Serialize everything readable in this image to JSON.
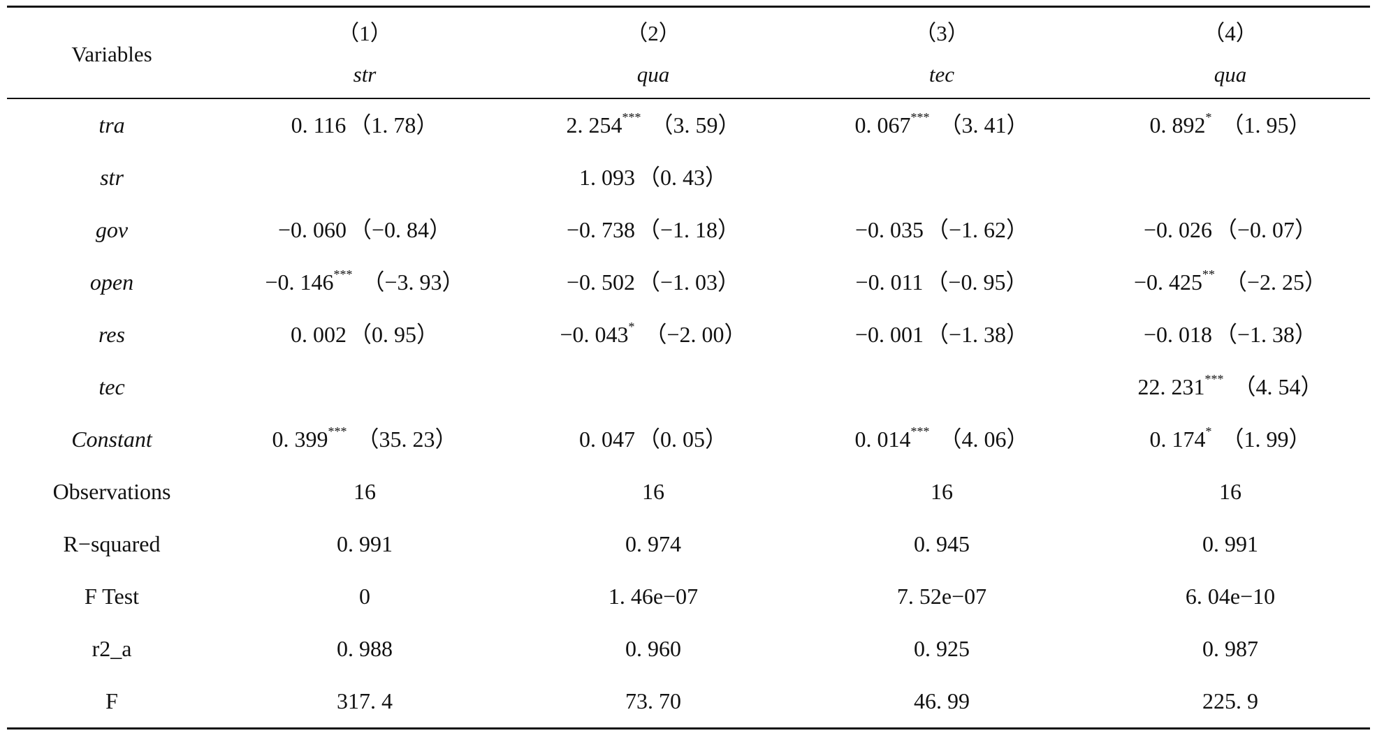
{
  "header": {
    "variables_label": "Variables",
    "columns": [
      {
        "number": "（1）",
        "dependent": "str"
      },
      {
        "number": "（2）",
        "dependent": "qua"
      },
      {
        "number": "（3）",
        "dependent": "tec"
      },
      {
        "number": "（4）",
        "dependent": "qua"
      }
    ]
  },
  "rows": [
    {
      "name": "tra",
      "italic": true,
      "cells": [
        {
          "coef": "0. 116",
          "stars": "",
          "t": "（1. 78）"
        },
        {
          "coef": "2. 254",
          "stars": "***",
          "t": "（3. 59）"
        },
        {
          "coef": "0. 067",
          "stars": "***",
          "t": "（3. 41）"
        },
        {
          "coef": "0. 892",
          "stars": "*",
          "t": "（1. 95）"
        }
      ]
    },
    {
      "name": "str",
      "italic": true,
      "cells": [
        {
          "coef": "",
          "stars": "",
          "t": ""
        },
        {
          "coef": "1. 093",
          "stars": "",
          "t": "（0. 43）"
        },
        {
          "coef": "",
          "stars": "",
          "t": ""
        },
        {
          "coef": "",
          "stars": "",
          "t": ""
        }
      ]
    },
    {
      "name": "gov",
      "italic": true,
      "cells": [
        {
          "coef": "−0. 060",
          "stars": "",
          "t": "（−0. 84）"
        },
        {
          "coef": "−0. 738",
          "stars": "",
          "t": "（−1. 18）"
        },
        {
          "coef": "−0. 035",
          "stars": "",
          "t": "（−1. 62）"
        },
        {
          "coef": "−0. 026",
          "stars": "",
          "t": "（−0. 07）"
        }
      ]
    },
    {
      "name": "open",
      "italic": true,
      "cells": [
        {
          "coef": "−0. 146",
          "stars": "***",
          "t": "（−3. 93）"
        },
        {
          "coef": "−0. 502",
          "stars": "",
          "t": "（−1. 03）"
        },
        {
          "coef": "−0. 011",
          "stars": "",
          "t": "（−0. 95）"
        },
        {
          "coef": "−0. 425",
          "stars": "**",
          "t": "（−2. 25）"
        }
      ]
    },
    {
      "name": "res",
      "italic": true,
      "cells": [
        {
          "coef": "0. 002",
          "stars": "",
          "t": "（0. 95）"
        },
        {
          "coef": "−0. 043",
          "stars": "*",
          "t": "（−2. 00）"
        },
        {
          "coef": "−0. 001",
          "stars": "",
          "t": "（−1. 38）"
        },
        {
          "coef": "−0. 018",
          "stars": "",
          "t": "（−1. 38）"
        }
      ]
    },
    {
      "name": "tec",
      "italic": true,
      "cells": [
        {
          "coef": "",
          "stars": "",
          "t": ""
        },
        {
          "coef": "",
          "stars": "",
          "t": ""
        },
        {
          "coef": "",
          "stars": "",
          "t": ""
        },
        {
          "coef": "22. 231",
          "stars": "***",
          "t": "（4. 54）"
        }
      ]
    },
    {
      "name": "Constant",
      "italic": true,
      "cells": [
        {
          "coef": "0. 399",
          "stars": "***",
          "t": "（35. 23）"
        },
        {
          "coef": "0. 047",
          "stars": "",
          "t": "（0. 05）"
        },
        {
          "coef": "0. 014",
          "stars": "***",
          "t": "（4. 06）"
        },
        {
          "coef": "0. 174",
          "stars": "*",
          "t": "（1. 99）"
        }
      ]
    },
    {
      "name": "Observations",
      "italic": false,
      "cells": [
        {
          "coef": "16",
          "stars": "",
          "t": ""
        },
        {
          "coef": "16",
          "stars": "",
          "t": ""
        },
        {
          "coef": "16",
          "stars": "",
          "t": ""
        },
        {
          "coef": "16",
          "stars": "",
          "t": ""
        }
      ]
    },
    {
      "name": "R−squared",
      "italic": false,
      "cells": [
        {
          "coef": "0. 991",
          "stars": "",
          "t": ""
        },
        {
          "coef": "0. 974",
          "stars": "",
          "t": ""
        },
        {
          "coef": "0. 945",
          "stars": "",
          "t": ""
        },
        {
          "coef": "0. 991",
          "stars": "",
          "t": ""
        }
      ]
    },
    {
      "name": "F Test",
      "italic": false,
      "cells": [
        {
          "coef": "0",
          "stars": "",
          "t": ""
        },
        {
          "coef": "1. 46e−07",
          "stars": "",
          "t": ""
        },
        {
          "coef": "7. 52e−07",
          "stars": "",
          "t": ""
        },
        {
          "coef": "6. 04e−10",
          "stars": "",
          "t": ""
        }
      ]
    },
    {
      "name": "r2_a",
      "italic": false,
      "cells": [
        {
          "coef": "0. 988",
          "stars": "",
          "t": ""
        },
        {
          "coef": "0. 960",
          "stars": "",
          "t": ""
        },
        {
          "coef": "0. 925",
          "stars": "",
          "t": ""
        },
        {
          "coef": "0. 987",
          "stars": "",
          "t": ""
        }
      ]
    },
    {
      "name": "F",
      "italic": false,
      "cells": [
        {
          "coef": "317. 4",
          "stars": "",
          "t": ""
        },
        {
          "coef": "73. 70",
          "stars": "",
          "t": ""
        },
        {
          "coef": "46. 99",
          "stars": "",
          "t": ""
        },
        {
          "coef": "225. 9",
          "stars": "",
          "t": ""
        }
      ]
    }
  ]
}
